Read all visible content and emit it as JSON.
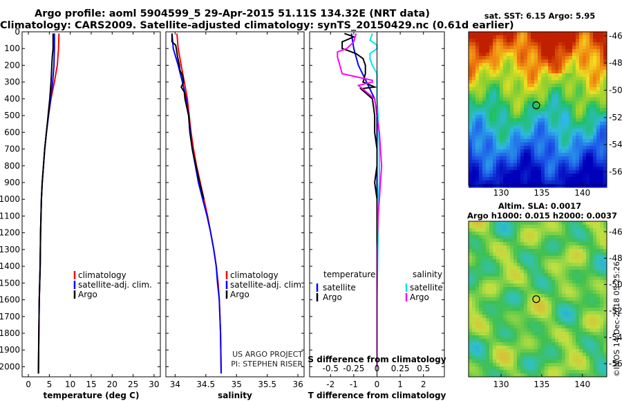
{
  "header": {
    "title_line1": "Argo profile: aoml 5904599_5 29-Apr-2015 51.11S 134.32E (NRT data)",
    "title_line2": "Climatology: CARS2009. Satellite-adjusted climatology: synTS_20150429.nc (0.61d earlier)"
  },
  "colors": {
    "climatology": "#ff0000",
    "satellite_adj": "#0000ff",
    "argo": "#000000",
    "satellite_salinity": "#00e5ee",
    "argo_salinity": "#ff00ff"
  },
  "chart_data": [
    {
      "type": "line",
      "panel": "temperature",
      "xlabel": "temperature (deg C)",
      "ylabel": "",
      "xlim": [
        -1.5,
        31.5
      ],
      "ylim": [
        2060,
        0
      ],
      "xticks": [
        0,
        5,
        10,
        15,
        20,
        25,
        30
      ],
      "yticks": [
        0,
        100,
        200,
        300,
        400,
        500,
        600,
        700,
        800,
        900,
        1000,
        1100,
        1200,
        1300,
        1400,
        1500,
        1600,
        1700,
        1800,
        1900,
        2000
      ],
      "legend": [
        "climatology",
        "satellite-adj. clim.",
        "Argo"
      ],
      "legend_position": "bottom-center",
      "series": [
        {
          "name": "climatology",
          "color": "#ff0000",
          "depth": [
            10,
            100,
            200,
            300,
            400,
            500,
            600,
            700,
            800,
            900,
            1000,
            1200,
            1400,
            1600,
            1800,
            2040
          ],
          "x": [
            7.3,
            7.2,
            6.9,
            6.2,
            5.4,
            4.8,
            4.3,
            3.9,
            3.6,
            3.3,
            3.1,
            2.9,
            2.8,
            2.6,
            2.5,
            2.4
          ]
        },
        {
          "name": "satellite-adj. clim.",
          "color": "#0000ff",
          "depth": [
            10,
            100,
            200,
            300,
            400,
            500,
            600,
            700,
            800,
            900,
            1000,
            1200,
            1400,
            1600,
            1800,
            2040
          ],
          "x": [
            6.2,
            6.2,
            6.1,
            5.8,
            5.3,
            4.8,
            4.3,
            3.9,
            3.6,
            3.3,
            3.1,
            2.9,
            2.8,
            2.6,
            2.5,
            2.4
          ]
        },
        {
          "name": "Argo",
          "color": "#000000",
          "depth": [
            10,
            100,
            150,
            200,
            300,
            400,
            500,
            600,
            700,
            800,
            900,
            1000,
            1200,
            1400,
            1600,
            1800,
            2040
          ],
          "x": [
            5.9,
            5.9,
            5.7,
            5.6,
            5.4,
            5.1,
            4.7,
            4.3,
            3.9,
            3.6,
            3.3,
            3.1,
            2.9,
            2.8,
            2.6,
            2.5,
            2.4
          ]
        }
      ]
    },
    {
      "type": "line",
      "panel": "salinity",
      "xlabel": "salinity",
      "ylabel": "",
      "xlim": [
        33.85,
        36.1
      ],
      "ylim": [
        2060,
        0
      ],
      "xticks": [
        34,
        34.5,
        35,
        35.5,
        36
      ],
      "legend": [
        "climatology",
        "satellite-adj. clim.",
        "Argo"
      ],
      "legend_position": "bottom-center",
      "annotations": [
        "US ARGO PROJECT",
        "PI: STEPHEN RISER"
      ],
      "series": [
        {
          "name": "climatology",
          "color": "#ff0000",
          "depth": [
            10,
            100,
            200,
            300,
            400,
            500,
            600,
            700,
            800,
            900,
            1000,
            1100,
            1200,
            1300,
            1400,
            1500,
            1600,
            1800,
            2040
          ],
          "x": [
            34.03,
            34.05,
            34.1,
            34.15,
            34.2,
            34.23,
            34.26,
            34.3,
            34.35,
            34.41,
            34.47,
            34.53,
            34.58,
            34.63,
            34.67,
            34.7,
            34.72,
            34.74,
            34.75
          ]
        },
        {
          "name": "satellite-adj. clim.",
          "color": "#0000ff",
          "depth": [
            10,
            100,
            200,
            300,
            400,
            500,
            600,
            700,
            800,
            900,
            1000,
            1100,
            1200,
            1300,
            1400,
            1500,
            1600,
            1800,
            2040
          ],
          "x": [
            33.95,
            33.97,
            34.05,
            34.12,
            34.18,
            34.22,
            34.25,
            34.28,
            34.33,
            34.38,
            34.45,
            34.52,
            34.58,
            34.63,
            34.67,
            34.69,
            34.72,
            34.74,
            34.75
          ]
        },
        {
          "name": "Argo",
          "color": "#000000",
          "depth": [
            10,
            60,
            80,
            100,
            150,
            200,
            230,
            260,
            300,
            330,
            360,
            400,
            500,
            600,
            700,
            800,
            900,
            1000
          ],
          "x": [
            33.95,
            33.95,
            34.01,
            34.02,
            34.04,
            34.07,
            34.08,
            34.12,
            34.14,
            34.1,
            34.15,
            34.16,
            34.22,
            34.24,
            34.28,
            34.34,
            34.4,
            34.47
          ]
        }
      ]
    },
    {
      "type": "line",
      "panel": "difference",
      "xlabel": "T difference from climatology",
      "secondary_xlabel": "S difference from climatology",
      "ylabel": "",
      "xlim": [
        -2.9,
        2.9
      ],
      "ylim": [
        2060,
        0
      ],
      "xticks": [
        -2,
        -1,
        0,
        1,
        2
      ],
      "secondary_xticks": [
        "-0.5",
        "-0.25",
        "0",
        "0.25",
        "0.5"
      ],
      "legend": [
        "temperature",
        "satellite",
        "Argo",
        "salinity",
        "satellite",
        "Argo"
      ],
      "legend_position": "bottom",
      "series": [
        {
          "name": "satellite",
          "color": "#0000ff",
          "depth": [
            10,
            100,
            200,
            300,
            400,
            500,
            600,
            700,
            800,
            900,
            1000,
            1100,
            1300,
            1600,
            2000
          ],
          "x": [
            -1.1,
            -1.0,
            -0.8,
            -0.45,
            -0.1,
            0.0,
            0.0,
            0.0,
            0.0,
            0.0,
            0.0,
            0.0,
            0.0,
            0.0,
            0.0
          ]
        },
        {
          "name": "Argo",
          "color": "#000000",
          "depth": [
            10,
            30,
            60,
            100,
            130,
            160,
            200,
            250,
            300,
            330,
            340,
            400,
            500,
            600,
            700,
            800,
            900,
            1000,
            1100,
            1300,
            1600,
            2000
          ],
          "x": [
            -1.4,
            -1.0,
            -1.5,
            -1.5,
            -0.9,
            -0.6,
            -0.5,
            -0.5,
            -0.6,
            -0.1,
            -0.7,
            -0.2,
            -0.1,
            -0.1,
            0.0,
            0.0,
            -0.1,
            0.0,
            0.0,
            0.0,
            0.0,
            0.0
          ]
        },
        {
          "name": "satellite",
          "color": "#00e5ee",
          "depth": [
            10,
            50,
            80,
            100,
            130,
            160,
            200,
            250,
            300,
            400,
            500,
            700,
            900,
            1000,
            1200,
            1600,
            2000
          ],
          "x": [
            -0.2,
            -0.3,
            0.0,
            0.0,
            -0.3,
            -0.3,
            -0.2,
            0.0,
            0.0,
            0.0,
            0.05,
            0.1,
            0.1,
            0.05,
            0.05,
            0.0,
            0.0
          ]
        },
        {
          "name": "Argo",
          "color": "#ff00ff",
          "depth": [
            10,
            60,
            100,
            120,
            150,
            200,
            250,
            290,
            300,
            320,
            400,
            500,
            600,
            700,
            800,
            900,
            1000,
            1100,
            1300,
            1600,
            2000
          ],
          "x": [
            -0.9,
            -1.0,
            -1.3,
            -1.7,
            -1.7,
            -1.6,
            -1.5,
            -0.2,
            -0.2,
            -0.8,
            -0.1,
            0.0,
            0.1,
            0.15,
            0.2,
            0.15,
            0.1,
            0.05,
            0.0,
            0.0,
            0.0
          ]
        }
      ]
    },
    {
      "type": "heatmap",
      "panel": "sst_map",
      "title": "sat. SST: 6.15 Argo: 5.95",
      "xlabel": "",
      "ylabel": "",
      "xlim": [
        126,
        143
      ],
      "ylim": [
        -57,
        -45.7
      ],
      "xticks": [
        130,
        135,
        140
      ],
      "yticks": [
        -46,
        -48,
        -50,
        -52,
        -54,
        -56
      ],
      "marker": {
        "lon": 134.32,
        "lat": -51.11
      }
    },
    {
      "type": "heatmap",
      "panel": "sla_map",
      "title": "Altim. SLA: 0.0017",
      "subtitle": "Argo h1000: 0.015 h2000: 0.0037",
      "xlabel": "",
      "ylabel": "",
      "xlim": [
        126,
        143
      ],
      "ylim": [
        -57,
        -45.2
      ],
      "xticks": [
        130,
        135,
        140
      ],
      "yticks": [
        -46,
        -48,
        -50,
        -52,
        -54,
        -56
      ],
      "marker": {
        "lon": 134.32,
        "lat": -51.11
      }
    }
  ],
  "footer": {
    "stamp": "©IMOS 14-Dec-2018 05:25:26"
  }
}
